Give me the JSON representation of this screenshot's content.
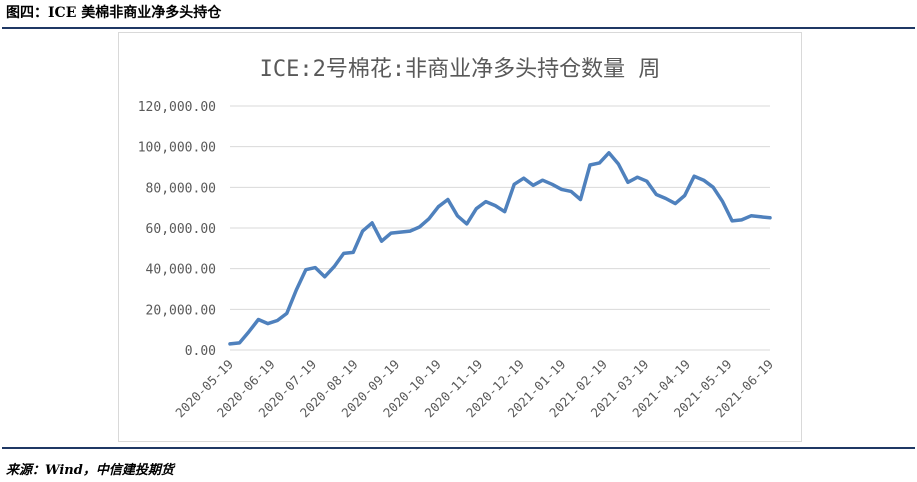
{
  "figure_title": "图四：ICE 美棉非商业净多头持仓",
  "source": "来源：Wind，中信建投期货",
  "colors": {
    "line": "#4f81bd",
    "rule": "#1f3864",
    "grid": "#d9d9d9",
    "axis_text": "#595959"
  },
  "chart_data": {
    "type": "line",
    "title": "ICE:2号棉花:非商业净多头持仓数量  周",
    "xlabel": "",
    "ylabel": "",
    "ylim": [
      0,
      120000
    ],
    "yticks": [
      "0.00",
      "20,000.00",
      "40,000.00",
      "60,000.00",
      "80,000.00",
      "100,000.00",
      "120,000.00"
    ],
    "xtick_labels": [
      "2020-05-19",
      "2020-06-19",
      "2020-07-19",
      "2020-08-19",
      "2020-09-19",
      "2020-10-19",
      "2020-11-19",
      "2020-12-19",
      "2021-01-19",
      "2021-02-19",
      "2021-03-19",
      "2021-04-19",
      "2021-05-19",
      "2021-06-19"
    ],
    "grid": true,
    "legend": "none",
    "series": [
      {
        "values": [
          3000,
          3500,
          9000,
          15000,
          13000,
          14500,
          18000,
          29500,
          39500,
          40500,
          36000,
          41000,
          47500,
          48000,
          58500,
          62500,
          53500,
          57500,
          58000,
          58500,
          60500,
          64500,
          70500,
          74000,
          66000,
          62000,
          69500,
          73000,
          71000,
          68000,
          81500,
          84500,
          81000,
          83500,
          81500,
          79000,
          78000,
          74000,
          91000,
          92000,
          97000,
          91500,
          82500,
          85000,
          83000,
          76500,
          74500,
          72000,
          76000,
          85500,
          83500,
          80000,
          73000,
          63500,
          64000,
          66000,
          65500,
          65000
        ]
      }
    ]
  }
}
